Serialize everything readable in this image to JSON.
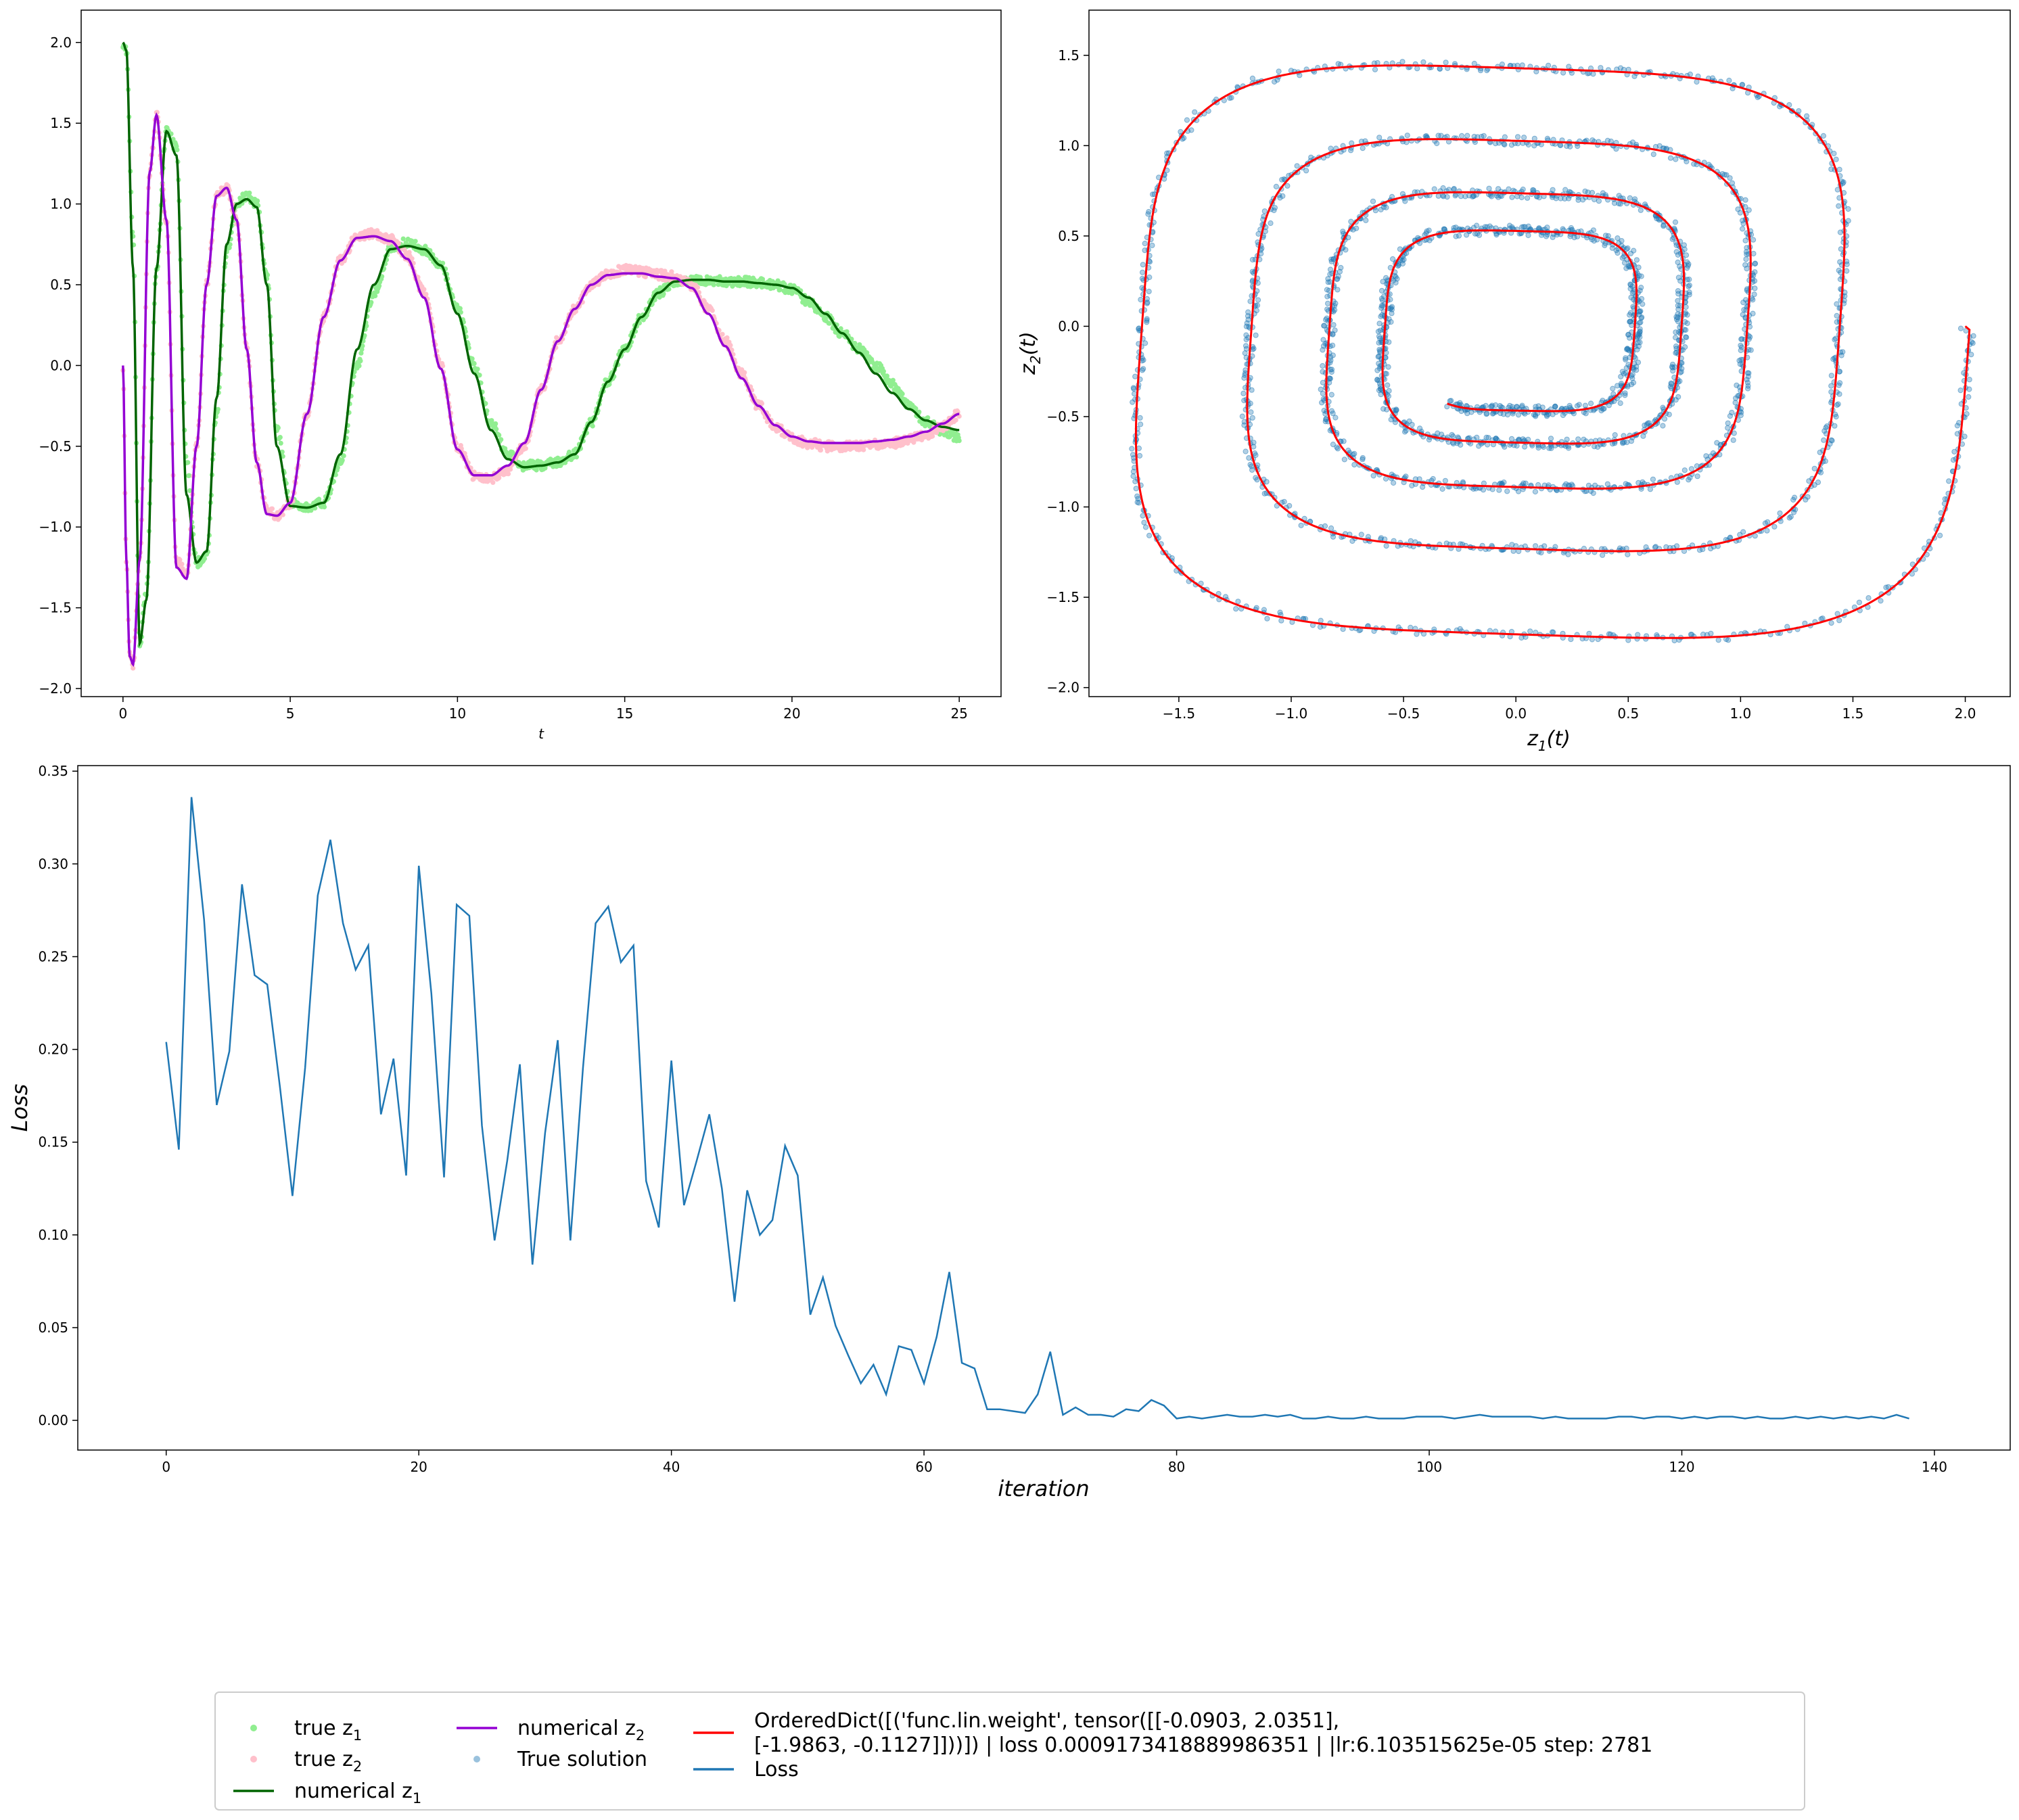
{
  "chart_data": [
    {
      "type": "line",
      "title": "",
      "xlabel": "t",
      "ylabel": "",
      "xlim": [
        -1.25,
        26.25
      ],
      "ylim": [
        -2.05,
        2.2
      ],
      "xticks": [
        0,
        5,
        10,
        15,
        20,
        25
      ],
      "yticks": [
        -2.0,
        -1.5,
        -1.0,
        -0.5,
        0.0,
        0.5,
        1.0,
        1.5,
        2.0
      ],
      "ytick_labels": [
        "−2.0",
        "−1.5",
        "−1.0",
        "−0.5",
        "0.0",
        "0.5",
        "1.0",
        "1.5",
        "2.0"
      ],
      "grid": false,
      "series": [
        {
          "name": "true z1",
          "kind": "scatter-band",
          "color": "#90ee90",
          "x": [
            0,
            0.1,
            0.3,
            0.5,
            0.7,
            1.0,
            1.3,
            1.6,
            1.9,
            2.2,
            2.5,
            2.8,
            3.1,
            3.4,
            3.7,
            4.0,
            4.3,
            4.6,
            5.0,
            5.5,
            6.0,
            6.5,
            7.0,
            7.5,
            8.0,
            8.5,
            9.0,
            9.5,
            10.0,
            10.5,
            11.0,
            11.5,
            12.0,
            12.5,
            13.0,
            13.5,
            14.0,
            14.5,
            15.0,
            15.5,
            16.0,
            16.5,
            17.0,
            17.5,
            18.0,
            18.5,
            19.0,
            19.5,
            20.0,
            20.5,
            21.0,
            21.5,
            22.0,
            22.5,
            23.0,
            23.5,
            24.0,
            24.5,
            25.0
          ],
          "y": [
            2.0,
            1.95,
            0.8,
            -1.72,
            -1.4,
            0.6,
            1.45,
            1.35,
            -0.6,
            -1.22,
            -1.18,
            -0.3,
            0.7,
            1.0,
            1.05,
            1.0,
            0.55,
            -0.4,
            -0.85,
            -0.88,
            -0.85,
            -0.6,
            0.0,
            0.45,
            0.72,
            0.76,
            0.72,
            0.62,
            0.35,
            0.0,
            -0.35,
            -0.55,
            -0.62,
            -0.62,
            -0.6,
            -0.55,
            -0.35,
            -0.1,
            0.1,
            0.3,
            0.45,
            0.52,
            0.53,
            0.53,
            0.52,
            0.52,
            0.51,
            0.5,
            0.47,
            0.4,
            0.3,
            0.2,
            0.1,
            0.0,
            -0.12,
            -0.25,
            -0.35,
            -0.4,
            -0.45
          ]
        },
        {
          "name": "true z2",
          "kind": "scatter-band",
          "color": "#ffc0cb",
          "x": [
            0,
            0.1,
            0.2,
            0.3,
            0.5,
            0.8,
            1.0,
            1.3,
            1.6,
            1.9,
            2.2,
            2.5,
            2.8,
            3.1,
            3.4,
            3.7,
            4.0,
            4.3,
            4.6,
            5.0,
            5.5,
            6.0,
            6.5,
            7.0,
            7.5,
            8.0,
            8.5,
            9.0,
            9.5,
            10.0,
            10.5,
            11.0,
            11.5,
            12.0,
            12.5,
            13.0,
            13.5,
            14.0,
            14.5,
            15.0,
            15.5,
            16.0,
            16.5,
            17.0,
            17.5,
            18.0,
            18.5,
            19.0,
            19.5,
            20.0,
            20.5,
            21.0,
            21.5,
            22.0,
            22.5,
            23.0,
            23.5,
            24.0,
            24.5,
            25.0
          ],
          "y": [
            0.0,
            -1.2,
            -1.8,
            -1.85,
            -1.2,
            1.2,
            1.55,
            0.9,
            -1.2,
            -1.3,
            -0.5,
            0.5,
            1.05,
            1.1,
            0.9,
            0.1,
            -0.6,
            -0.9,
            -0.93,
            -0.85,
            -0.3,
            0.3,
            0.65,
            0.8,
            0.82,
            0.78,
            0.68,
            0.45,
            0.0,
            -0.5,
            -0.68,
            -0.7,
            -0.65,
            -0.5,
            -0.15,
            0.15,
            0.35,
            0.5,
            0.57,
            0.59,
            0.58,
            0.56,
            0.55,
            0.5,
            0.35,
            0.15,
            -0.05,
            -0.25,
            -0.38,
            -0.45,
            -0.48,
            -0.5,
            -0.5,
            -0.5,
            -0.49,
            -0.48,
            -0.46,
            -0.43,
            -0.38,
            -0.3
          ]
        },
        {
          "name": "numerical z1",
          "kind": "line",
          "color": "#006400",
          "x": [
            0,
            0.1,
            0.3,
            0.5,
            0.7,
            1.0,
            1.3,
            1.6,
            1.9,
            2.2,
            2.5,
            2.8,
            3.1,
            3.4,
            3.7,
            4.0,
            4.3,
            4.6,
            5.0,
            5.5,
            6.0,
            6.5,
            7.0,
            7.5,
            8.0,
            8.5,
            9.0,
            9.5,
            10.0,
            10.5,
            11.0,
            11.5,
            12.0,
            12.5,
            13.0,
            13.5,
            14.0,
            14.5,
            15.0,
            15.5,
            16.0,
            16.5,
            17.0,
            17.5,
            18.0,
            18.5,
            19.0,
            19.5,
            20.0,
            20.5,
            21.0,
            21.5,
            22.0,
            22.5,
            23.0,
            23.5,
            24.0,
            24.5,
            25.0
          ],
          "y": [
            2.0,
            1.95,
            0.6,
            -1.72,
            -1.45,
            0.6,
            1.45,
            1.3,
            -0.8,
            -1.22,
            -1.15,
            -0.2,
            0.75,
            1.0,
            1.03,
            0.98,
            0.5,
            -0.5,
            -0.87,
            -0.88,
            -0.85,
            -0.55,
            0.1,
            0.5,
            0.72,
            0.74,
            0.72,
            0.62,
            0.32,
            -0.05,
            -0.4,
            -0.58,
            -0.63,
            -0.62,
            -0.6,
            -0.55,
            -0.35,
            -0.1,
            0.1,
            0.3,
            0.45,
            0.52,
            0.53,
            0.53,
            0.52,
            0.52,
            0.51,
            0.5,
            0.48,
            0.42,
            0.32,
            0.2,
            0.08,
            -0.05,
            -0.17,
            -0.27,
            -0.34,
            -0.38,
            -0.4
          ]
        },
        {
          "name": "numerical z2",
          "kind": "line",
          "color": "#9400d3",
          "x": [
            0,
            0.1,
            0.2,
            0.3,
            0.5,
            0.8,
            1.0,
            1.3,
            1.6,
            1.9,
            2.2,
            2.5,
            2.8,
            3.1,
            3.4,
            3.7,
            4.0,
            4.3,
            4.6,
            5.0,
            5.5,
            6.0,
            6.5,
            7.0,
            7.5,
            8.0,
            8.5,
            9.0,
            9.5,
            10.0,
            10.5,
            11.0,
            11.5,
            12.0,
            12.5,
            13.0,
            13.5,
            14.0,
            14.5,
            15.0,
            15.5,
            16.0,
            16.5,
            17.0,
            17.5,
            18.0,
            18.5,
            19.0,
            19.5,
            20.0,
            20.5,
            21.0,
            21.5,
            22.0,
            22.5,
            23.0,
            23.5,
            24.0,
            24.5,
            25.0
          ],
          "y": [
            0.0,
            -1.2,
            -1.8,
            -1.85,
            -1.2,
            1.2,
            1.55,
            0.9,
            -1.25,
            -1.32,
            -0.5,
            0.5,
            1.05,
            1.1,
            0.9,
            0.1,
            -0.6,
            -0.92,
            -0.93,
            -0.85,
            -0.3,
            0.3,
            0.65,
            0.79,
            0.8,
            0.77,
            0.66,
            0.42,
            -0.02,
            -0.52,
            -0.68,
            -0.68,
            -0.62,
            -0.48,
            -0.15,
            0.15,
            0.35,
            0.5,
            0.56,
            0.57,
            0.57,
            0.55,
            0.54,
            0.48,
            0.32,
            0.12,
            -0.08,
            -0.25,
            -0.37,
            -0.44,
            -0.47,
            -0.48,
            -0.48,
            -0.48,
            -0.47,
            -0.46,
            -0.44,
            -0.41,
            -0.36,
            -0.3
          ]
        }
      ]
    },
    {
      "type": "line",
      "title": "",
      "xlabel": "z1(t)",
      "ylabel": "z2(t)",
      "xlim": [
        -1.9,
        2.2
      ],
      "ylim": [
        -2.05,
        1.75
      ],
      "xticks": [
        -1.5,
        -1.0,
        -0.5,
        0.0,
        0.5,
        1.0,
        1.5,
        2.0
      ],
      "xtick_labels": [
        "−1.5",
        "−1.0",
        "−0.5",
        "0.0",
        "0.5",
        "1.0",
        "1.5",
        "2.0"
      ],
      "yticks": [
        -2.0,
        -1.5,
        -1.0,
        -0.5,
        0.0,
        0.5,
        1.0,
        1.5
      ],
      "ytick_labels": [
        "−2.0",
        "−1.5",
        "−1.0",
        "−0.5",
        "0.0",
        "0.5",
        "1.0",
        "1.5"
      ],
      "grid": false,
      "series": [
        {
          "name": "True solution",
          "kind": "scatter",
          "color": "#1f77b4",
          "spiral_start": [
            2.0,
            0.0
          ],
          "spiral_end": [
            -0.47,
            -0.3
          ],
          "turns": 4.3
        },
        {
          "name": "OrderedDict([('func.lin.weight', tensor([[-0.0903,  2.0351],\n        [-1.9863, -0.1127]]))]) |   loss 0.0009173418889986351   |   |lr:6.103515625e-05   step: 2781",
          "kind": "line",
          "color": "#ff0000",
          "spiral_start": [
            2.0,
            0.0
          ],
          "spiral_end": [
            -0.47,
            -0.3
          ],
          "turns": 4.3
        }
      ]
    },
    {
      "type": "line",
      "title": "",
      "xlabel": "iteration",
      "ylabel": "Loss",
      "xlim": [
        -7,
        146
      ],
      "ylim": [
        -0.016,
        0.353
      ],
      "xticks": [
        0,
        20,
        40,
        60,
        80,
        100,
        120,
        140
      ],
      "yticks": [
        0.0,
        0.05,
        0.1,
        0.15,
        0.2,
        0.25,
        0.3,
        0.35
      ],
      "ytick_labels": [
        "0.00",
        "0.05",
        "0.10",
        "0.15",
        "0.20",
        "0.25",
        "0.30",
        "0.35"
      ],
      "grid": false,
      "series": [
        {
          "name": "Loss",
          "color": "#1f77b4",
          "values": [
            0.204,
            0.146,
            0.336,
            0.27,
            0.17,
            0.199,
            0.289,
            0.24,
            0.235,
            0.18,
            0.121,
            0.19,
            0.283,
            0.313,
            0.268,
            0.243,
            0.256,
            0.165,
            0.195,
            0.132,
            0.299,
            0.23,
            0.131,
            0.278,
            0.272,
            0.159,
            0.097,
            0.14,
            0.192,
            0.084,
            0.155,
            0.205,
            0.097,
            0.19,
            0.268,
            0.277,
            0.247,
            0.256,
            0.129,
            0.104,
            0.194,
            0.116,
            0.14,
            0.165,
            0.125,
            0.064,
            0.124,
            0.1,
            0.108,
            0.148,
            0.132,
            0.057,
            0.077,
            0.051,
            0.035,
            0.02,
            0.03,
            0.014,
            0.04,
            0.038,
            0.02,
            0.045,
            0.08,
            0.031,
            0.028,
            0.006,
            0.006,
            0.005,
            0.004,
            0.014,
            0.037,
            0.003,
            0.007,
            0.003,
            0.003,
            0.002,
            0.006,
            0.005,
            0.011,
            0.008,
            0.001,
            0.002,
            0.001,
            0.002,
            0.003,
            0.002,
            0.002,
            0.003,
            0.002,
            0.003,
            0.001,
            0.001,
            0.002,
            0.001,
            0.001,
            0.002,
            0.001,
            0.001,
            0.001,
            0.002,
            0.002,
            0.002,
            0.001,
            0.002,
            0.003,
            0.002,
            0.002,
            0.002,
            0.002,
            0.001,
            0.002,
            0.001,
            0.001,
            0.001,
            0.001,
            0.002,
            0.002,
            0.001,
            0.002,
            0.002,
            0.001,
            0.002,
            0.001,
            0.002,
            0.002,
            0.001,
            0.002,
            0.001,
            0.001,
            0.002,
            0.001,
            0.002,
            0.001,
            0.002,
            0.001,
            0.002,
            0.001,
            0.003,
            0.001
          ]
        }
      ]
    }
  ],
  "legend": {
    "placement": "bottom-center",
    "entries": [
      {
        "name_main": "true z",
        "subscript": "1",
        "marker": "dot",
        "color": "#90ee90"
      },
      {
        "name_main": "true z",
        "subscript": "2",
        "marker": "dot",
        "color": "#ffc0cb"
      },
      {
        "name_main": "numerical z",
        "subscript": "1",
        "marker": "line",
        "color": "#006400"
      },
      {
        "name_main": "numerical z",
        "subscript": "2",
        "marker": "line",
        "color": "#9400d3"
      },
      {
        "name_main": "True solution",
        "subscript": "",
        "marker": "dot",
        "color": "#1f77b4"
      },
      {
        "name_main": "OrderedDict([('func.lin.weight', tensor([[-0.0903,  2.0351],",
        "line2": "        [-1.9863, -0.1127]]))]) |   loss 0.0009173418889986351   |   |lr:6.103515625e-05   step: 2781",
        "subscript": "",
        "marker": "line",
        "color": "#ff0000"
      },
      {
        "name_main": "Loss",
        "subscript": "",
        "marker": "line",
        "color": "#1f77b4"
      }
    ]
  }
}
